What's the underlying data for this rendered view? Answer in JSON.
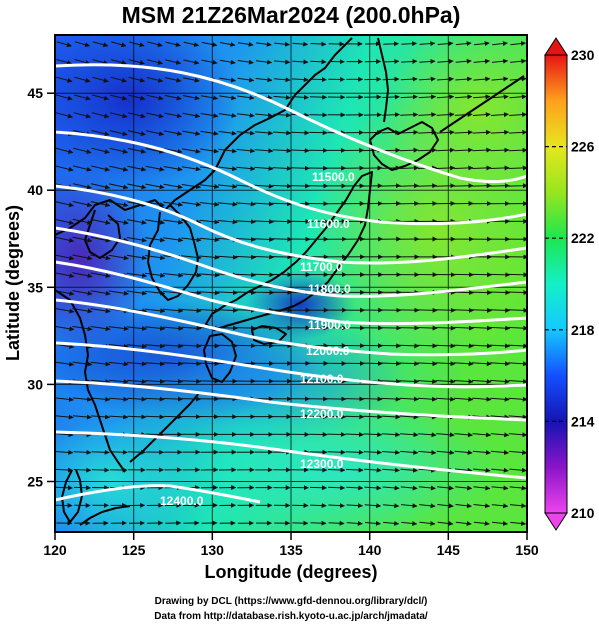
{
  "title": "MSM 21Z26Mar2024 (200.0hPa)",
  "xlabel": "Longitude (degrees)",
  "ylabel": "Latitude  (degrees)",
  "credits": [
    "Drawing by DCL (https://www.gfd-dennou.org/library/dcl/)",
    "Data from http://database.rish.kyoto-u.ac.jp/arch/jmadata/"
  ],
  "map": {
    "lon_range": [
      120,
      150
    ],
    "lat_range": [
      22.4,
      48
    ],
    "x_ticks": [
      "120",
      "125",
      "130",
      "135",
      "140",
      "145",
      "150"
    ],
    "y_ticks": [
      "25",
      "30",
      "35",
      "40",
      "45"
    ],
    "grid": true,
    "wind_vectors": true,
    "coastlines": true
  },
  "colorbar": {
    "label_values": [
      "230",
      "226",
      "222",
      "218",
      "214",
      "210"
    ],
    "range": [
      210,
      230
    ],
    "colors": [
      "#ee44ee",
      "#8a14c8",
      "#1414b4",
      "#1450ff",
      "#14c8ff",
      "#14f0c8",
      "#1ee650",
      "#96e61e",
      "#e6e61e",
      "#ffa01e",
      "#ff3c14",
      "#e61414"
    ]
  },
  "contours": [
    {
      "value": 11500,
      "label": "11500.0"
    },
    {
      "value": 11600,
      "label": "11600.0"
    },
    {
      "value": 11700,
      "label": "11700.0"
    },
    {
      "value": 11800,
      "label": "11800.0"
    },
    {
      "value": 11900,
      "label": "11900.0"
    },
    {
      "value": 12000,
      "label": "12000.0"
    },
    {
      "value": 12100,
      "label": "12100.0"
    },
    {
      "value": 12200,
      "label": "12200.0"
    },
    {
      "value": 12300,
      "label": "12300.0"
    },
    {
      "value": 12400,
      "label": "12400.0"
    }
  ]
}
